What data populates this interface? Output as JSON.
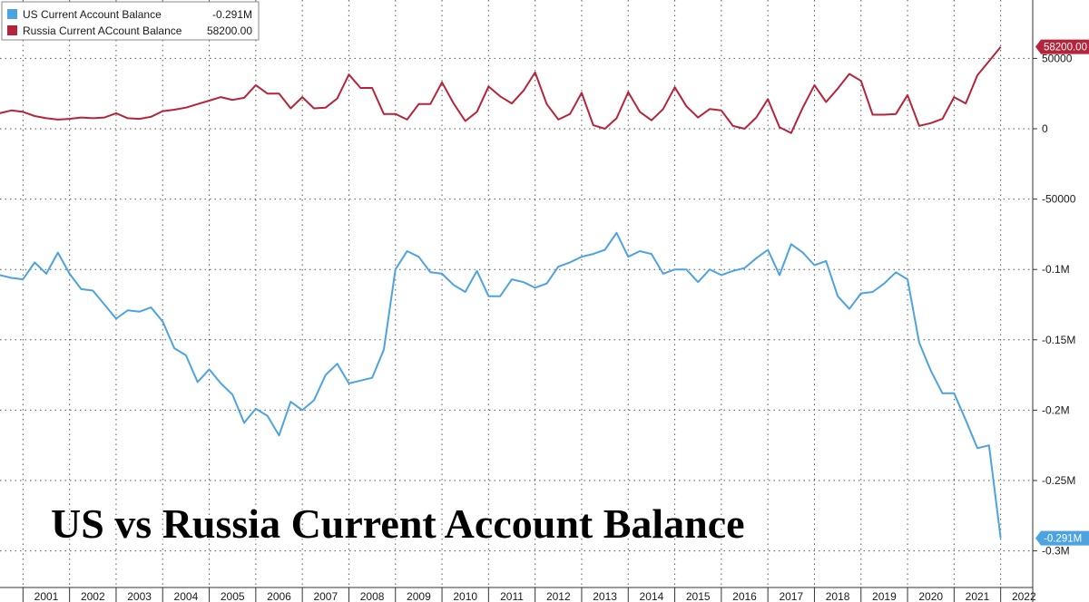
{
  "chart_data": {
    "type": "line",
    "title": "US vs Russia Current Account Balance",
    "legend": {
      "placement": "top-left",
      "entries": [
        {
          "name": "US Current Account Balance",
          "value": "-0.291M",
          "color": "#4da3e0"
        },
        {
          "name": "Russia Current ACcount Balance",
          "value": "58200.00",
          "color": "#b5243a"
        }
      ]
    },
    "x_tick_labels": [
      "2001",
      "2002",
      "2003",
      "2004",
      "2005",
      "2006",
      "2007",
      "2008",
      "2009",
      "2010",
      "2011",
      "2012",
      "2013",
      "2014",
      "2015",
      "2016",
      "2017",
      "2018",
      "2019",
      "2020",
      "2021",
      "2022"
    ],
    "right_axis": {
      "ticks": [
        {
          "value": 50000,
          "label": "50000"
        },
        {
          "value": 0,
          "label": "0"
        },
        {
          "value": -50000,
          "label": "-50000"
        },
        {
          "value": -100000,
          "label": "-0.1M"
        },
        {
          "value": -150000,
          "label": "-0.15M"
        },
        {
          "value": -200000,
          "label": "-0.2M"
        },
        {
          "value": -250000,
          "label": "-0.25M"
        },
        {
          "value": -300000,
          "label": "-0.3M"
        }
      ]
    },
    "grid": true,
    "series": [
      {
        "name": "US Current Account Balance",
        "color": "#4da3e0",
        "last_label": "-0.291M",
        "x": [
          2000.25,
          2000.5,
          2000.75,
          2001.0,
          2001.25,
          2001.5,
          2001.75,
          2002.0,
          2002.25,
          2002.5,
          2002.75,
          2003.0,
          2003.25,
          2003.5,
          2003.75,
          2004.0,
          2004.25,
          2004.5,
          2004.75,
          2005.0,
          2005.25,
          2005.5,
          2005.75,
          2006.0,
          2006.25,
          2006.5,
          2006.75,
          2007.0,
          2007.25,
          2007.5,
          2007.75,
          2008.0,
          2008.25,
          2008.5,
          2008.75,
          2009.0,
          2009.25,
          2009.5,
          2009.75,
          2010.0,
          2010.25,
          2010.5,
          2010.75,
          2011.0,
          2011.25,
          2011.5,
          2011.75,
          2012.0,
          2012.25,
          2012.5,
          2012.75,
          2013.0,
          2013.25,
          2013.5,
          2013.75,
          2014.0,
          2014.25,
          2014.5,
          2014.75,
          2015.0,
          2015.25,
          2015.5,
          2015.75,
          2016.0,
          2016.25,
          2016.5,
          2016.75,
          2017.0,
          2017.25,
          2017.5,
          2017.75,
          2018.0,
          2018.25,
          2018.5,
          2018.75,
          2019.0,
          2019.25,
          2019.5,
          2019.75,
          2020.0,
          2020.25,
          2020.5,
          2020.75,
          2021.0,
          2021.25,
          2021.5,
          2021.75,
          2022.0
        ],
        "values": [
          -96000,
          -104000,
          -106000,
          -107000,
          -95000,
          -103000,
          -88000,
          -103000,
          -114000,
          -115000,
          -125000,
          -135000,
          -129000,
          -130000,
          -127000,
          -137000,
          -156000,
          -161000,
          -180000,
          -171000,
          -181000,
          -189000,
          -209000,
          -199000,
          -204000,
          -218000,
          -194000,
          -200000,
          -193000,
          -175000,
          -167000,
          -181000,
          -179000,
          -177000,
          -157000,
          -100000,
          -87000,
          -91000,
          -102000,
          -103000,
          -111000,
          -116000,
          -101000,
          -119000,
          -119000,
          -107000,
          -109000,
          -113000,
          -110000,
          -98000,
          -95000,
          -91000,
          -89000,
          -86000,
          -74000,
          -91000,
          -87000,
          -89000,
          -103000,
          -100000,
          -100000,
          -109000,
          -100000,
          -104000,
          -101000,
          -99000,
          -92000,
          -86000,
          -104000,
          -82000,
          -88000,
          -97000,
          -94000,
          -119000,
          -128000,
          -117000,
          -116000,
          -110000,
          -102000,
          -107000,
          -152000,
          -172000,
          -188000,
          -188000,
          -207000,
          -227000,
          -225000,
          -291000
        ]
      },
      {
        "name": "Russia Current ACcount Balance",
        "color": "#b5243a",
        "last_label": "58200.00",
        "x": [
          2000.25,
          2000.5,
          2000.75,
          2001.0,
          2001.25,
          2001.5,
          2001.75,
          2002.0,
          2002.25,
          2002.5,
          2002.75,
          2003.0,
          2003.25,
          2003.5,
          2003.75,
          2004.0,
          2004.25,
          2004.5,
          2004.75,
          2005.0,
          2005.25,
          2005.5,
          2005.75,
          2006.0,
          2006.25,
          2006.5,
          2006.75,
          2007.0,
          2007.25,
          2007.5,
          2007.75,
          2008.0,
          2008.25,
          2008.5,
          2008.75,
          2009.0,
          2009.25,
          2009.5,
          2009.75,
          2010.0,
          2010.25,
          2010.5,
          2010.75,
          2011.0,
          2011.25,
          2011.5,
          2011.75,
          2012.0,
          2012.25,
          2012.5,
          2012.75,
          2013.0,
          2013.25,
          2013.5,
          2013.75,
          2014.0,
          2014.25,
          2014.5,
          2014.75,
          2015.0,
          2015.25,
          2015.5,
          2015.75,
          2016.0,
          2016.25,
          2016.5,
          2016.75,
          2017.0,
          2017.25,
          2017.5,
          2017.75,
          2018.0,
          2018.25,
          2018.5,
          2018.75,
          2019.0,
          2019.25,
          2019.5,
          2019.75,
          2020.0,
          2020.25,
          2020.5,
          2020.75,
          2021.0,
          2021.25,
          2021.5,
          2021.75,
          2022.0
        ],
        "values": [
          12000,
          11000,
          13000,
          12000,
          9000,
          7500,
          6500,
          7000,
          8000,
          7500,
          8000,
          11000,
          7500,
          7000,
          8500,
          12500,
          13500,
          15000,
          17500,
          20000,
          22500,
          20500,
          22000,
          31000,
          25000,
          25000,
          14500,
          22500,
          14500,
          15000,
          21500,
          38500,
          29000,
          29000,
          10500,
          10500,
          6500,
          17500,
          17500,
          33000,
          18000,
          5500,
          12000,
          30000,
          23000,
          18000,
          27000,
          40000,
          17500,
          6500,
          10500,
          25500,
          2500,
          0,
          7500,
          26000,
          12000,
          6000,
          14000,
          29500,
          16000,
          8000,
          14000,
          13000,
          2000,
          0,
          8000,
          21000,
          1000,
          -3000,
          15000,
          31000,
          19000,
          28500,
          39000,
          34000,
          10000,
          10000,
          10500,
          24000,
          2000,
          4000,
          7000,
          22500,
          18000,
          38000,
          48000,
          58200
        ]
      }
    ]
  }
}
